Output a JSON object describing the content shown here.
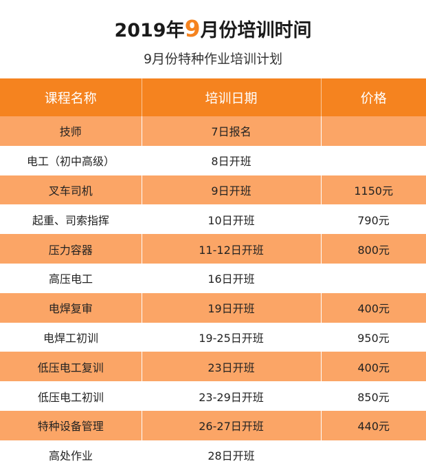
{
  "title": {
    "prefix": "2019年",
    "month": "9",
    "suffix": "月份培训时间"
  },
  "subtitle": "9月份特种作业培训计划",
  "colors": {
    "accent": "#f5831f",
    "row_highlight": "#fba566",
    "row_plain": "#ffffff"
  },
  "table": {
    "headers": [
      "课程名称",
      "培训日期",
      "价格"
    ],
    "rows": [
      {
        "course": "技师",
        "date": "7日报名",
        "price": ""
      },
      {
        "course": "电工（初中高级）",
        "date": "8日开班",
        "price": ""
      },
      {
        "course": "叉车司机",
        "date": "9日开班",
        "price": "1150元"
      },
      {
        "course": "起重、司索指挥",
        "date": "10日开班",
        "price": "790元"
      },
      {
        "course": "压力容器",
        "date": "11-12日开班",
        "price": "800元"
      },
      {
        "course": "高压电工",
        "date": "16日开班",
        "price": ""
      },
      {
        "course": "电焊复审",
        "date": "19日开班",
        "price": "400元"
      },
      {
        "course": "电焊工初训",
        "date": "19-25日开班",
        "price": "950元"
      },
      {
        "course": "低压电工复训",
        "date": "23日开班",
        "price": "400元"
      },
      {
        "course": "低压电工初训",
        "date": "23-29日开班",
        "price": "850元"
      },
      {
        "course": "特种设备管理",
        "date": "26-27日开班",
        "price": "440元"
      },
      {
        "course": "高处作业",
        "date": "28日开班",
        "price": ""
      }
    ]
  }
}
